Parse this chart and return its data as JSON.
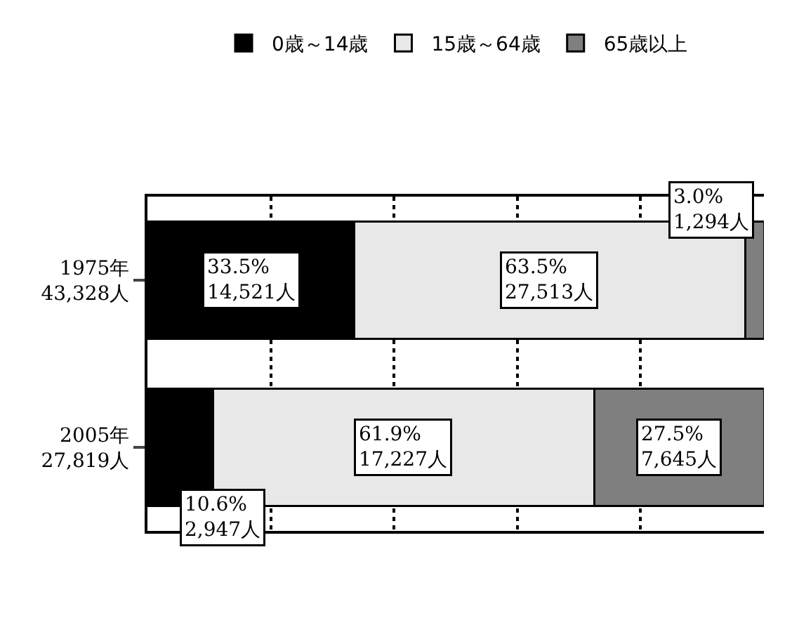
{
  "chart_data": {
    "type": "bar",
    "orientation": "horizontal",
    "stacked": true,
    "categories": [
      "1975年\n43,328人",
      "2005年\n27,819人"
    ],
    "series": [
      {
        "name": "0歳～14歳",
        "color": "#000000",
        "values": [
          33.5,
          10.6
        ],
        "value_labels": [
          "33.5%\n14,521人",
          "10.6%\n2,947人"
        ]
      },
      {
        "name": "15歳～64歳",
        "color": "#e8e8e8",
        "values": [
          63.5,
          61.9
        ],
        "value_labels": [
          "63.5%\n27,513人",
          "61.9%\n17,227人"
        ]
      },
      {
        "name": "65歳以上",
        "color": "#7f7f7f",
        "values": [
          3.0,
          27.5
        ],
        "value_labels": [
          "3.0%\n1,294人",
          "27.5%\n7,645人"
        ]
      }
    ],
    "xlim": [
      0,
      100
    ],
    "xticks": [
      {
        "value": 20,
        "label": null
      },
      {
        "value": 40,
        "label": null
      },
      {
        "value": 60,
        "label": null
      },
      {
        "value": 80,
        "label": null
      }
    ],
    "tick_labels": "y",
    "grid": "x",
    "legend": "top"
  }
}
